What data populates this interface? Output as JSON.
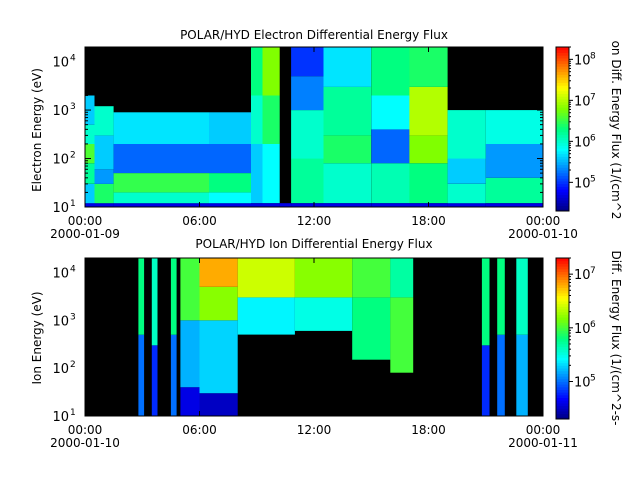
{
  "chart_data": [
    {
      "type": "heatmap",
      "title": "POLAR/HYD  Electron Differential Energy Flux",
      "ylabel": "Electron Energy (eV)",
      "colorbar_label": "on Diff. Energy Flux (1/(cm^2",
      "x_ticks": [
        "00:00",
        "06:00",
        "12:00",
        "18:00",
        "00:00"
      ],
      "x_tick_dates": [
        "2000-01-09",
        "2000-01-10"
      ],
      "x_range_hours": [
        0,
        24
      ],
      "y_scale": "log",
      "y_range": [
        10,
        20000
      ],
      "y_ticks": [
        {
          "base": "10",
          "exp": "1"
        },
        {
          "base": "10",
          "exp": "2"
        },
        {
          "base": "10",
          "exp": "3"
        },
        {
          "base": "10",
          "exp": "4"
        }
      ],
      "colorbar_scale": "log",
      "colorbar_range": [
        20000,
        200000000
      ],
      "colorbar_ticks": [
        {
          "base": "10",
          "exp": "5"
        },
        {
          "base": "10",
          "exp": "6"
        },
        {
          "base": "10",
          "exp": "7"
        },
        {
          "base": "10",
          "exp": "8"
        }
      ],
      "colorscale": [
        "#000080",
        "#0000ff",
        "#0080ff",
        "#00ffff",
        "#00ff80",
        "#80ff00",
        "#ffff00",
        "#ff8000",
        "#ff0000"
      ],
      "no_data_color": "#000000",
      "bins": [
        {
          "t": [
            0.0,
            0.5
          ],
          "e": [
            10,
            20000
          ],
          "v": [
            [
              10,
              12,
              4.7
            ],
            [
              12,
              30,
              5.6
            ],
            [
              30,
              80,
              6.2
            ],
            [
              80,
              200,
              6.6
            ],
            [
              200,
              500,
              6.0
            ],
            [
              500,
              2000,
              5.6
            ],
            [
              2000,
              20000,
              null
            ]
          ]
        },
        {
          "t": [
            0.5,
            1.5
          ],
          "e": [
            10,
            20000
          ],
          "v": [
            [
              10,
              12,
              4.7
            ],
            [
              12,
              30,
              6.4
            ],
            [
              30,
              60,
              5.4
            ],
            [
              60,
              300,
              5.6
            ],
            [
              300,
              1200,
              6.0
            ],
            [
              1200,
              20000,
              null
            ]
          ]
        },
        {
          "t": [
            1.5,
            6.5
          ],
          "e": [
            10,
            20000
          ],
          "v": [
            [
              10,
              12,
              4.7
            ],
            [
              12,
              20,
              6.0
            ],
            [
              20,
              50,
              6.5
            ],
            [
              50,
              200,
              5.2
            ],
            [
              200,
              900,
              5.7
            ],
            [
              900,
              20000,
              null
            ]
          ]
        },
        {
          "t": [
            6.5,
            8.7
          ],
          "e": [
            10,
            20000
          ],
          "v": [
            [
              10,
              12,
              4.7
            ],
            [
              12,
              20,
              5.8
            ],
            [
              20,
              50,
              6.3
            ],
            [
              50,
              200,
              5.2
            ],
            [
              200,
              900,
              5.6
            ],
            [
              900,
              20000,
              null
            ]
          ]
        },
        {
          "t": [
            8.7,
            9.3
          ],
          "e": [
            10,
            20000
          ],
          "v": [
            [
              10,
              12,
              4.7
            ],
            [
              12,
              200,
              5.6
            ],
            [
              200,
              2000,
              6.0
            ],
            [
              2000,
              20000,
              6.3
            ]
          ]
        },
        {
          "t": [
            9.3,
            10.2
          ],
          "e": [
            10,
            20000
          ],
          "v": [
            [
              10,
              12,
              4.7
            ],
            [
              12,
              200,
              5.8
            ],
            [
              200,
              2000,
              6.4
            ],
            [
              2000,
              20000,
              6.8
            ]
          ]
        },
        {
          "t": [
            10.2,
            10.8
          ],
          "e": [
            10,
            20000
          ],
          "v": [
            [
              10,
              12,
              4.7
            ],
            [
              12,
              20000,
              null
            ]
          ]
        },
        {
          "t": [
            10.8,
            12.5
          ],
          "e": [
            10,
            20000
          ],
          "v": [
            [
              10,
              12,
              4.7
            ],
            [
              12,
              100,
              6.2
            ],
            [
              100,
              1000,
              6.0
            ],
            [
              1000,
              5000,
              5.3
            ],
            [
              5000,
              20000,
              5.0
            ]
          ]
        },
        {
          "t": [
            12.5,
            15.0
          ],
          "e": [
            10,
            20000
          ],
          "v": [
            [
              10,
              12,
              4.7
            ],
            [
              12,
              80,
              6.0
            ],
            [
              80,
              300,
              6.4
            ],
            [
              300,
              3000,
              6.2
            ],
            [
              3000,
              20000,
              5.7
            ]
          ]
        },
        {
          "t": [
            15.0,
            17.0
          ],
          "e": [
            10,
            20000
          ],
          "v": [
            [
              10,
              12,
              4.7
            ],
            [
              12,
              80,
              6.1
            ],
            [
              80,
              400,
              5.2
            ],
            [
              400,
              2000,
              5.8
            ],
            [
              2000,
              20000,
              6.3
            ]
          ]
        },
        {
          "t": [
            17.0,
            19.0
          ],
          "e": [
            10,
            20000
          ],
          "v": [
            [
              10,
              12,
              4.7
            ],
            [
              12,
              80,
              6.3
            ],
            [
              80,
              300,
              6.8
            ],
            [
              300,
              3000,
              7.0
            ],
            [
              3000,
              20000,
              6.4
            ]
          ]
        },
        {
          "t": [
            19.0,
            21.0
          ],
          "e": [
            10,
            20000
          ],
          "v": [
            [
              10,
              12,
              4.7
            ],
            [
              12,
              30,
              6.0
            ],
            [
              30,
              100,
              5.6
            ],
            [
              100,
              1000,
              6.0
            ],
            [
              1000,
              20000,
              null
            ]
          ]
        },
        {
          "t": [
            21.0,
            24.0
          ],
          "e": [
            10,
            20000
          ],
          "v": [
            [
              10,
              12,
              4.7
            ],
            [
              12,
              40,
              6.2
            ],
            [
              40,
              200,
              5.4
            ],
            [
              200,
              1000,
              5.9
            ],
            [
              1000,
              20000,
              null
            ]
          ]
        }
      ]
    },
    {
      "type": "heatmap",
      "title": "POLAR/HYD  Ion Differential Energy Flux",
      "ylabel": "Ion Energy (eV)",
      "colorbar_label": "Diff. Energy Flux (1/(cm^2-s-",
      "x_ticks": [
        "00:00",
        "06:00",
        "12:00",
        "18:00",
        "00:00"
      ],
      "x_tick_dates": [
        "2000-01-10",
        "2000-01-11"
      ],
      "x_range_hours": [
        0,
        24
      ],
      "y_scale": "log",
      "y_range": [
        10,
        20000
      ],
      "y_ticks": [
        {
          "base": "10",
          "exp": "1"
        },
        {
          "base": "10",
          "exp": "2"
        },
        {
          "base": "10",
          "exp": "3"
        },
        {
          "base": "10",
          "exp": "4"
        }
      ],
      "colorbar_scale": "log",
      "colorbar_range": [
        20000,
        20000000
      ],
      "colorbar_ticks": [
        {
          "base": "10",
          "exp": "5"
        },
        {
          "base": "10",
          "exp": "6"
        },
        {
          "base": "10",
          "exp": "7"
        }
      ],
      "colorscale": [
        "#000080",
        "#0000ff",
        "#0080ff",
        "#00ffff",
        "#00ff80",
        "#80ff00",
        "#ffff00",
        "#ff8000",
        "#ff0000"
      ],
      "no_data_color": "#000000",
      "bins": [
        {
          "t": [
            2.8,
            3.1
          ],
          "e": [
            10,
            20000
          ],
          "v": [
            [
              10,
              500,
              5.0
            ],
            [
              500,
              20000,
              5.8
            ]
          ]
        },
        {
          "t": [
            3.5,
            3.8
          ],
          "e": [
            10,
            20000
          ],
          "v": [
            [
              10,
              300,
              4.8
            ],
            [
              300,
              20000,
              5.6
            ]
          ]
        },
        {
          "t": [
            4.5,
            4.8
          ],
          "e": [
            10,
            20000
          ],
          "v": [
            [
              10,
              500,
              5.0
            ],
            [
              500,
              20000,
              5.8
            ]
          ]
        },
        {
          "t": [
            5.0,
            6.0
          ],
          "e": [
            10,
            20000
          ],
          "v": [
            [
              10,
              40,
              4.6
            ],
            [
              40,
              1000,
              5.2
            ],
            [
              1000,
              20000,
              6.0
            ]
          ]
        },
        {
          "t": [
            6.0,
            8.0
          ],
          "e": [
            10,
            20000
          ],
          "v": [
            [
              10,
              30,
              4.5
            ],
            [
              30,
              1000,
              5.3
            ],
            [
              1000,
              5000,
              6.2
            ],
            [
              5000,
              20000,
              6.8
            ]
          ]
        },
        {
          "t": [
            8.0,
            11.0
          ],
          "e": [
            10,
            20000
          ],
          "v": [
            [
              10,
              500,
              null
            ],
            [
              500,
              3000,
              5.4
            ],
            [
              3000,
              20000,
              6.4
            ]
          ]
        },
        {
          "t": [
            11.0,
            14.0
          ],
          "e": [
            10,
            20000
          ],
          "v": [
            [
              10,
              600,
              null
            ],
            [
              600,
              3000,
              5.5
            ],
            [
              3000,
              20000,
              6.2
            ]
          ]
        },
        {
          "t": [
            14.0,
            16.0
          ],
          "e": [
            10,
            20000
          ],
          "v": [
            [
              10,
              150,
              null
            ],
            [
              150,
              3000,
              5.8
            ],
            [
              3000,
              20000,
              6.0
            ]
          ]
        },
        {
          "t": [
            16.0,
            17.2
          ],
          "e": [
            10,
            20000
          ],
          "v": [
            [
              10,
              80,
              null
            ],
            [
              80,
              3000,
              6.0
            ],
            [
              3000,
              20000,
              5.7
            ]
          ]
        },
        {
          "t": [
            20.8,
            21.2
          ],
          "e": [
            10,
            20000
          ],
          "v": [
            [
              10,
              300,
              4.8
            ],
            [
              300,
              20000,
              5.8
            ]
          ]
        },
        {
          "t": [
            21.6,
            22.0
          ],
          "e": [
            10,
            20000
          ],
          "v": [
            [
              10,
              500,
              5.0
            ],
            [
              500,
              20000,
              5.8
            ]
          ]
        },
        {
          "t": [
            22.6,
            23.2
          ],
          "e": [
            10,
            20000
          ],
          "v": [
            [
              10,
              500,
              5.2
            ],
            [
              500,
              20000,
              5.6
            ]
          ]
        }
      ]
    }
  ]
}
